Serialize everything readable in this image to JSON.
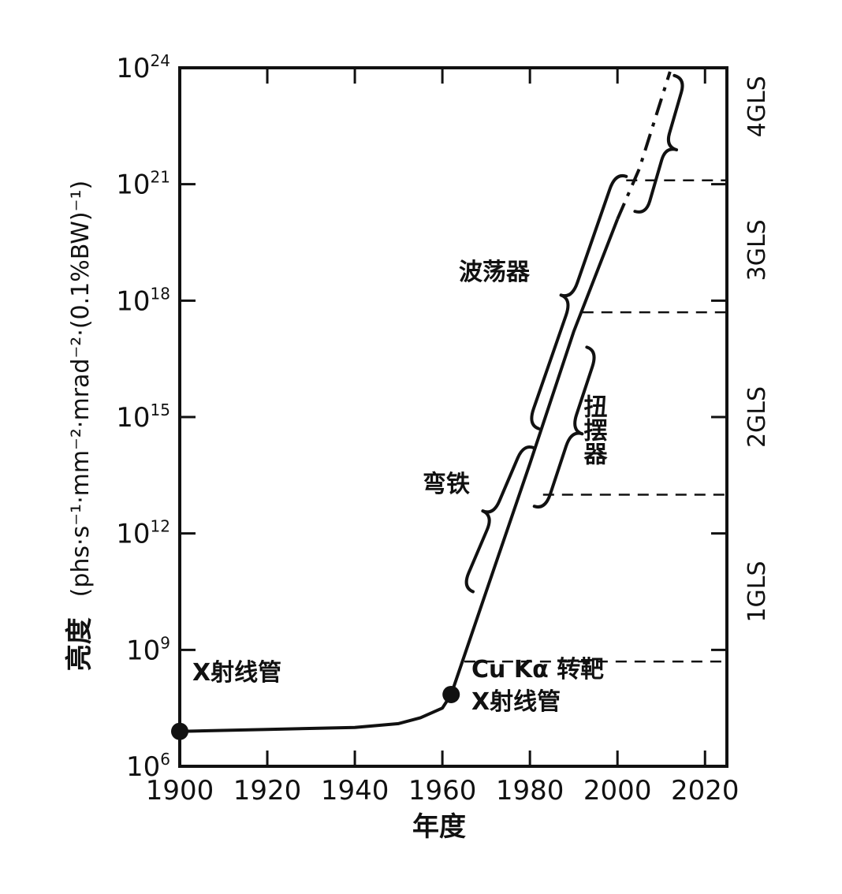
{
  "chart_data": {
    "type": "line",
    "xlabel": "年度",
    "ylabel": {
      "main": "亮度",
      "unit": "(phs·s⁻¹·mm⁻²·mrad⁻²·(0.1%BW)⁻¹)"
    },
    "xlim": [
      1900,
      2025
    ],
    "ylim_log10": [
      6,
      24
    ],
    "y_scale": "log",
    "x_ticks": [
      "1900",
      "1920",
      "1940",
      "1960",
      "1980",
      "2000",
      "2020"
    ],
    "y_ticks": [
      {
        "base": "10",
        "exp": "6"
      },
      {
        "base": "10",
        "exp": "9"
      },
      {
        "base": "10",
        "exp": "12"
      },
      {
        "base": "10",
        "exp": "15"
      },
      {
        "base": "10",
        "exp": "18"
      },
      {
        "base": "10",
        "exp": "21"
      },
      {
        "base": "10",
        "exp": "24"
      }
    ],
    "series": [
      {
        "style": "solid",
        "x": [
          1900,
          1920,
          1940,
          1950,
          1955,
          1960,
          1962,
          1970,
          1980,
          1990,
          2000
        ],
        "log10_y": [
          6.9,
          6.95,
          7.0,
          7.1,
          7.25,
          7.5,
          7.85,
          10.5,
          13.8,
          17.2,
          20.1
        ]
      },
      {
        "style": "dash-dot",
        "x": [
          2000,
          2005,
          2012
        ],
        "log10_y": [
          20.1,
          21.4,
          23.9
        ]
      }
    ],
    "markers": [
      {
        "x": 1900,
        "log10_y": 6.9,
        "label": "X射线管"
      },
      {
        "x": 1962,
        "log10_y": 7.85,
        "label_line1": "Cu Kα 转靶",
        "label_line2": "X射线管"
      }
    ],
    "brackets": [
      {
        "label": "弯铁",
        "x_from": 1967,
        "x_to": 1981,
        "log10_y_from": 10.5,
        "log10_y_to": 14.2
      },
      {
        "label": "扭摆器",
        "x_from": 1981,
        "x_to": 1993,
        "log10_y_from": 12.7,
        "log10_y_to": 16.8
      },
      {
        "label": "波荡器",
        "x_from": 1982,
        "x_to": 2002,
        "log10_y_from": 14.7,
        "log10_y_to": 21.2
      },
      {
        "label": "",
        "x_from": 2004,
        "x_to": 2013,
        "log10_y_from": 20.3,
        "log10_y_to": 23.8
      }
    ],
    "generation_levels": [
      {
        "label": "1GLS",
        "log10_y": 8.7,
        "x_start": 1965
      },
      {
        "label": "2GLS",
        "log10_y": 13.0,
        "x_start": 1983
      },
      {
        "label": "3GLS",
        "log10_y": 17.7,
        "x_start": 1992
      },
      {
        "label": "4GLS",
        "log10_y": 21.1,
        "x_start": 2002
      }
    ],
    "generation_label_positions": [
      10.5,
      15.0,
      19.3,
      23.0
    ],
    "grid": false
  }
}
